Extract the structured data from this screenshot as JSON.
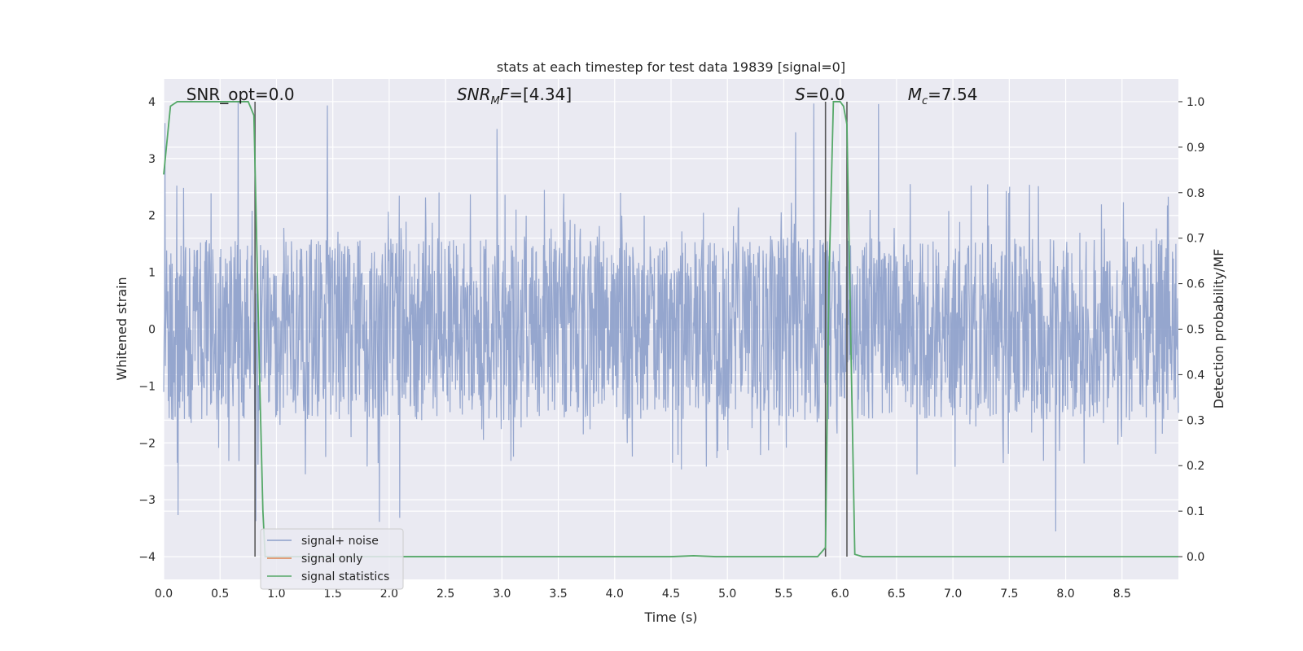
{
  "chart_data": {
    "type": "line",
    "title": "stats at each timestep for test data 19839 [signal=0]",
    "xlabel": "Time (s)",
    "ylabel": "Whitened strain",
    "ylabel_right": "Detection probability/MF",
    "xlim": [
      0,
      9.0
    ],
    "ylim": [
      -4.4,
      4.4
    ],
    "ylim_right": [
      -0.05,
      1.05
    ],
    "x_ticks": [
      "0.0",
      "0.5",
      "1.0",
      "1.5",
      "2.0",
      "2.5",
      "3.0",
      "3.5",
      "4.0",
      "4.5",
      "5.0",
      "5.5",
      "6.0",
      "6.5",
      "7.0",
      "7.5",
      "8.0",
      "8.5"
    ],
    "y_ticks": [
      "−4",
      "−3",
      "−2",
      "−1",
      "0",
      "1",
      "2",
      "3",
      "4"
    ],
    "y_ticks_right": [
      "0.0",
      "0.1",
      "0.2",
      "0.3",
      "0.4",
      "0.5",
      "0.6",
      "0.7",
      "0.8",
      "0.9",
      "1.0"
    ],
    "grid": true,
    "annotations": [
      {
        "html": "SNR_opt=0.0",
        "x": 0.2
      },
      {
        "html": "<tspan font-style='italic'>SNR</tspan><tspan font-style='italic' font-size='13' dy='5'>M</tspan><tspan font-style='italic' dy='-5'>F</tspan>=[4.34]",
        "x": 2.6
      },
      {
        "html": "<tspan font-style='italic'>S</tspan>=0.0",
        "x": 5.6
      },
      {
        "html": "<tspan font-style='italic'>M</tspan><tspan font-style='italic' font-size='13' dy='5'>c</tspan><tspan dy='-5'>=7.54</tspan>",
        "x": 6.6
      }
    ],
    "vlines": [
      0.81,
      5.87,
      6.06
    ],
    "series": [
      {
        "name": "signal+ noise",
        "color": "#8c9fca",
        "noise_amplitude": 1.6,
        "noise_peak_min": -3.7,
        "noise_peak_max": 4.0
      },
      {
        "name": "signal only",
        "color": "#dd8452",
        "x": [],
        "y": []
      },
      {
        "name": "signal statistics",
        "color": "#55a868",
        "axis": "right",
        "x": [
          0.0,
          0.06,
          0.12,
          0.2,
          0.3,
          0.4,
          0.5,
          0.6,
          0.7,
          0.75,
          0.8,
          0.82,
          0.85,
          0.88,
          0.9,
          1.0,
          1.5,
          2.0,
          2.5,
          3.0,
          3.5,
          4.0,
          4.5,
          4.7,
          4.9,
          5.0,
          5.5,
          5.8,
          5.87,
          5.9,
          5.94,
          6.0,
          6.03,
          6.06,
          6.1,
          6.13,
          6.2,
          6.5,
          7.0,
          7.5,
          8.0,
          8.5,
          9.0
        ],
        "y": [
          0.84,
          0.99,
          1.0,
          1.0,
          1.0,
          1.0,
          1.0,
          1.0,
          1.0,
          1.0,
          0.97,
          0.75,
          0.4,
          0.1,
          0.0,
          0.0,
          0.0,
          0.0,
          0.0,
          0.0,
          0.0,
          0.0,
          0.0,
          0.002,
          0.0,
          0.0,
          0.0,
          0.0,
          0.02,
          0.6,
          1.0,
          1.0,
          0.99,
          0.95,
          0.4,
          0.005,
          0.0,
          0.0,
          0.0,
          0.0,
          0.0,
          0.0,
          0.0
        ]
      }
    ],
    "legend_location": "lower-left"
  }
}
